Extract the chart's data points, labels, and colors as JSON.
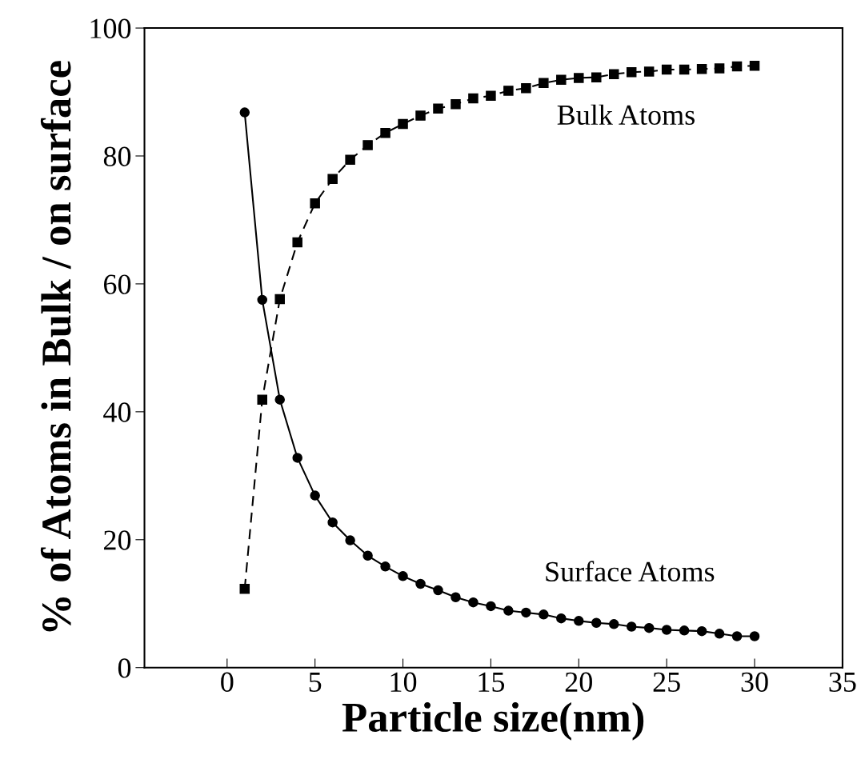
{
  "chart_data": {
    "type": "line",
    "xlabel": "Particle size(nm)",
    "ylabel": "% of Atoms in Bulk / on surface",
    "x": [
      1,
      2,
      3,
      4,
      5,
      6,
      7,
      8,
      9,
      10,
      11,
      12,
      13,
      14,
      15,
      16,
      17,
      18,
      19,
      20,
      21,
      22,
      23,
      24,
      25,
      26,
      27,
      28,
      29,
      30
    ],
    "series": [
      {
        "name": "Bulk Atoms",
        "color": "#000000",
        "marker": "square",
        "line_style": "dashed",
        "values": [
          12.3,
          41.9,
          57.6,
          66.5,
          72.6,
          76.4,
          79.4,
          81.7,
          83.6,
          85.0,
          86.3,
          87.4,
          88.1,
          89.0,
          89.4,
          90.2,
          90.6,
          91.4,
          91.9,
          92.2,
          92.3,
          92.8,
          93.1,
          93.2,
          93.5,
          93.5,
          93.6,
          93.7,
          94.0,
          94.1
        ]
      },
      {
        "name": "Surface Atoms",
        "color": "#000000",
        "marker": "circle",
        "line_style": "solid",
        "values": [
          86.8,
          57.5,
          41.9,
          32.8,
          26.9,
          22.7,
          19.9,
          17.5,
          15.8,
          14.3,
          13.1,
          12.1,
          11.0,
          10.2,
          9.6,
          8.9,
          8.6,
          8.3,
          7.7,
          7.3,
          7.0,
          6.8,
          6.4,
          6.2,
          5.9,
          5.8,
          5.7,
          5.3,
          4.9,
          4.9
        ]
      }
    ],
    "xlim": [
      -4.7,
      35
    ],
    "xticks": [
      0,
      5,
      10,
      15,
      20,
      25,
      30,
      35
    ],
    "ylim": [
      0,
      100
    ],
    "yticks": [
      0,
      20,
      40,
      60,
      80,
      100
    ],
    "grid": false
  }
}
